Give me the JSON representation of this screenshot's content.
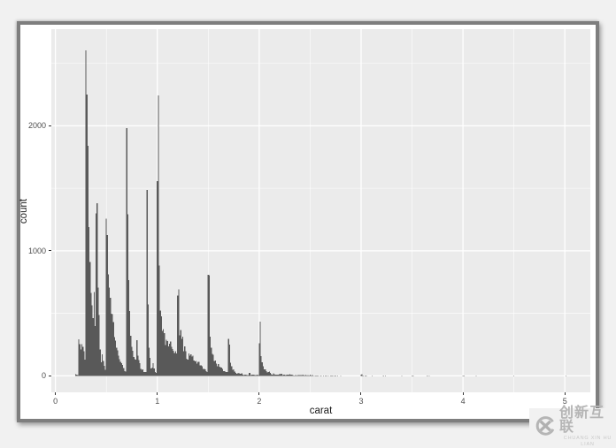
{
  "colors": {
    "page_bg": "#f1f1f1",
    "window_bg": "#ffffff",
    "window_border": "#7e7e7e",
    "panel_bg": "#ebebeb",
    "grid": "#ffffff",
    "bar": "#595959",
    "tick_mark": "#333333",
    "tick_text": "#4d4d4d",
    "axis_title": "#1a1a1a",
    "watermark_gray": "#b5b5b5"
  },
  "watermark": {
    "logo": "x-in-circle-icon",
    "brand_cn": "创新互联",
    "brand_en": "CHUANG XIN HU LIAN"
  },
  "chart_data": {
    "type": "bar",
    "subtype": "histogram",
    "title": "",
    "xlabel": "carat",
    "ylabel": "count",
    "x_ticks": [
      0,
      1,
      2,
      3,
      4,
      5
    ],
    "y_ticks": [
      0,
      1000,
      2000
    ],
    "x_minor": [
      0.5,
      1.5,
      2.5,
      3.5,
      4.5
    ],
    "y_minor": [
      500,
      1500,
      2500
    ],
    "xlim": [
      -0.04,
      5.25
    ],
    "ylim": [
      -132,
      2773
    ],
    "grid": true,
    "legend": "none",
    "binwidth": 0.01,
    "bin_start": 0.2,
    "counts": [
      12,
      9,
      5,
      293,
      254,
      212,
      253,
      233,
      198,
      130,
      2604,
      2249,
      1840,
      1189,
      910,
      663,
      564,
      461,
      670,
      397,
      1299,
      1382,
      706,
      486,
      212,
      110,
      172,
      119,
      79,
      47,
      1258,
      1127,
      813,
      707,
      625,
      496,
      492,
      429,
      311,
      282,
      226,
      204,
      163,
      134,
      113,
      100,
      88,
      62,
      39,
      33,
      1981,
      1294,
      767,
      517,
      322,
      231,
      201,
      150,
      133,
      129,
      284,
      161,
      127,
      101,
      57,
      47,
      51,
      32,
      31,
      31,
      1485,
      570,
      226,
      142,
      59,
      65,
      103,
      59,
      31,
      23,
      1558,
      2242,
      883,
      523,
      475,
      361,
      373,
      342,
      246,
      287,
      278,
      235,
      258,
      274,
      231,
      213,
      201,
      182,
      198,
      180,
      642,
      690,
      324,
      368,
      295,
      314,
      195,
      234,
      198,
      137,
      128,
      180,
      162,
      172,
      154,
      161,
      121,
      116,
      118,
      98,
      112,
      111,
      85,
      83,
      75,
      57,
      56,
      53,
      38,
      32,
      807,
      805,
      313,
      224,
      177,
      169,
      118,
      122,
      99,
      76,
      95,
      73,
      69,
      65,
      56,
      39,
      39,
      32,
      29,
      31,
      296,
      248,
      104,
      77,
      47,
      51,
      35,
      24,
      17,
      21,
      22,
      17,
      15,
      19,
      8,
      7,
      9,
      9,
      6,
      6,
      22,
      23,
      7,
      9,
      8,
      9,
      6,
      6,
      8,
      5,
      261,
      433,
      157,
      110,
      76,
      53,
      52,
      39,
      27,
      29,
      33,
      22,
      13,
      10,
      20,
      12,
      10,
      8,
      9,
      11,
      18,
      14,
      16,
      7,
      9,
      11,
      5,
      8,
      9,
      10,
      14,
      9,
      11,
      6,
      4,
      4,
      7,
      3,
      7,
      5,
      7,
      5,
      5,
      8,
      4,
      5,
      5,
      3,
      5,
      2,
      9
    ],
    "sparse_bins": [
      [
        2.51,
        4
      ],
      [
        2.52,
        5
      ],
      [
        2.53,
        3
      ],
      [
        2.55,
        2
      ],
      [
        2.56,
        3
      ],
      [
        2.57,
        3
      ],
      [
        2.58,
        2
      ],
      [
        2.6,
        2
      ],
      [
        2.61,
        2
      ],
      [
        2.63,
        2
      ],
      [
        2.65,
        2
      ],
      [
        2.66,
        2
      ],
      [
        2.68,
        1
      ],
      [
        2.7,
        2
      ],
      [
        2.71,
        1
      ],
      [
        2.72,
        3
      ],
      [
        2.74,
        2
      ],
      [
        2.75,
        3
      ],
      [
        2.77,
        2
      ],
      [
        2.8,
        2
      ],
      [
        3.0,
        8
      ],
      [
        3.01,
        14
      ],
      [
        3.02,
        2
      ],
      [
        3.04,
        2
      ],
      [
        3.05,
        2
      ],
      [
        3.11,
        1
      ],
      [
        3.22,
        1
      ],
      [
        3.24,
        1
      ],
      [
        3.4,
        1
      ],
      [
        3.5,
        1
      ],
      [
        3.51,
        2
      ],
      [
        3.65,
        1
      ],
      [
        3.67,
        1
      ],
      [
        4.0,
        2
      ],
      [
        4.01,
        2
      ],
      [
        4.13,
        1
      ],
      [
        4.5,
        1
      ],
      [
        5.01,
        1
      ]
    ]
  }
}
